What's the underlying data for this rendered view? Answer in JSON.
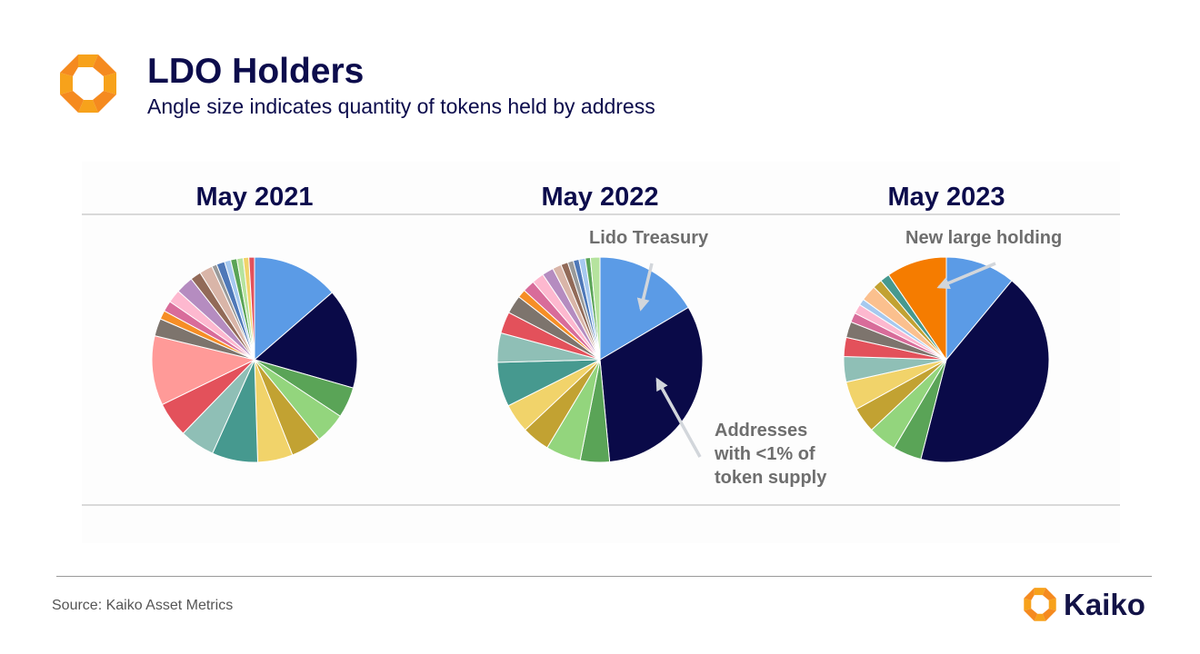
{
  "header": {
    "title": "LDO Holders",
    "subtitle": "Angle size indicates quantity of tokens held by address"
  },
  "footer": {
    "source": "Source: Kaiko Asset Metrics",
    "brand": "Kaiko"
  },
  "colors": {
    "accent_orange": "#f5821f",
    "navy": "#0c0c4c",
    "annotation_gray": "#6e6e6e"
  },
  "icons": [
    "kaiko-logo-icon"
  ],
  "chart_data": [
    {
      "type": "pie",
      "title": "May 2021",
      "slices": [
        {
          "value": 13.8,
          "color": "#5b9be6"
        },
        {
          "value": 16.0,
          "color": "#0a0a48"
        },
        {
          "value": 4.9,
          "color": "#5aa457"
        },
        {
          "value": 4.9,
          "color": "#93d57d"
        },
        {
          "value": 4.9,
          "color": "#c2a232"
        },
        {
          "value": 5.6,
          "color": "#f1d36a"
        },
        {
          "value": 7.3,
          "color": "#46998f"
        },
        {
          "value": 5.6,
          "color": "#8fbfb6"
        },
        {
          "value": 5.6,
          "color": "#e3515b"
        },
        {
          "value": 11.1,
          "color": "#ff9a98"
        },
        {
          "value": 2.8,
          "color": "#7d746d"
        },
        {
          "value": 1.4,
          "color": "#f68e26"
        },
        {
          "value": 1.7,
          "color": "#d86c9a"
        },
        {
          "value": 2.1,
          "color": "#fdb8cf"
        },
        {
          "value": 2.8,
          "color": "#b58cc0"
        },
        {
          "value": 1.7,
          "color": "#926a58"
        },
        {
          "value": 2.1,
          "color": "#d9b5a8"
        },
        {
          "value": 0.8,
          "color": "#9a9a9a"
        },
        {
          "value": 1.3,
          "color": "#4e78b8"
        },
        {
          "value": 1.0,
          "color": "#a6c9ef"
        },
        {
          "value": 1.0,
          "color": "#5aa457"
        },
        {
          "value": 1.0,
          "color": "#b5e39e"
        },
        {
          "value": 0.9,
          "color": "#f1d36a"
        },
        {
          "value": 0.9,
          "color": "#e3515b"
        }
      ]
    },
    {
      "type": "pie",
      "title": "May 2022",
      "slices": [
        {
          "value": 16.5,
          "color": "#5b9be6"
        },
        {
          "value": 32.0,
          "color": "#0a0a48"
        },
        {
          "value": 4.6,
          "color": "#5aa457"
        },
        {
          "value": 5.5,
          "color": "#93d57d"
        },
        {
          "value": 4.4,
          "color": "#c2a232"
        },
        {
          "value": 4.6,
          "color": "#f1d36a"
        },
        {
          "value": 7.0,
          "color": "#46998f"
        },
        {
          "value": 4.6,
          "color": "#8fbfb6"
        },
        {
          "value": 3.4,
          "color": "#e3515b"
        },
        {
          "value": 2.9,
          "color": "#7d746d"
        },
        {
          "value": 1.3,
          "color": "#f68e26"
        },
        {
          "value": 1.9,
          "color": "#d86c9a"
        },
        {
          "value": 1.9,
          "color": "#fdb8cf"
        },
        {
          "value": 1.8,
          "color": "#b58cc0"
        },
        {
          "value": 1.4,
          "color": "#d9b5a8"
        },
        {
          "value": 1.1,
          "color": "#926a58"
        },
        {
          "value": 0.9,
          "color": "#9a9a9a"
        },
        {
          "value": 0.9,
          "color": "#4e78b8"
        },
        {
          "value": 1.0,
          "color": "#a6c9ef"
        },
        {
          "value": 0.8,
          "color": "#5aa457"
        },
        {
          "value": 1.5,
          "color": "#b5e39e"
        }
      ]
    },
    {
      "type": "pie",
      "title": "May 2023",
      "slices": [
        {
          "value": 11.0,
          "color": "#5b9be6"
        },
        {
          "value": 43.0,
          "color": "#0a0a48"
        },
        {
          "value": 4.5,
          "color": "#5aa457"
        },
        {
          "value": 4.5,
          "color": "#93d57d"
        },
        {
          "value": 4.0,
          "color": "#c2a232"
        },
        {
          "value": 4.5,
          "color": "#f1d36a"
        },
        {
          "value": 4.0,
          "color": "#8fbfb6"
        },
        {
          "value": 3.0,
          "color": "#e3515b"
        },
        {
          "value": 2.5,
          "color": "#7d746d"
        },
        {
          "value": 1.5,
          "color": "#d86c9a"
        },
        {
          "value": 1.5,
          "color": "#fdb8cf"
        },
        {
          "value": 1.0,
          "color": "#a6c9ef"
        },
        {
          "value": 2.5,
          "color": "#fbc08e"
        },
        {
          "value": 1.5,
          "color": "#c2a232"
        },
        {
          "value": 1.5,
          "color": "#46998f"
        },
        {
          "value": 9.5,
          "color": "#f57c00"
        }
      ]
    }
  ],
  "annotations": [
    {
      "text": [
        "Lido Treasury"
      ]
    },
    {
      "text": [
        "Addresses",
        "with <1% of",
        "token supply"
      ]
    },
    {
      "text": [
        "New large holding"
      ]
    }
  ]
}
